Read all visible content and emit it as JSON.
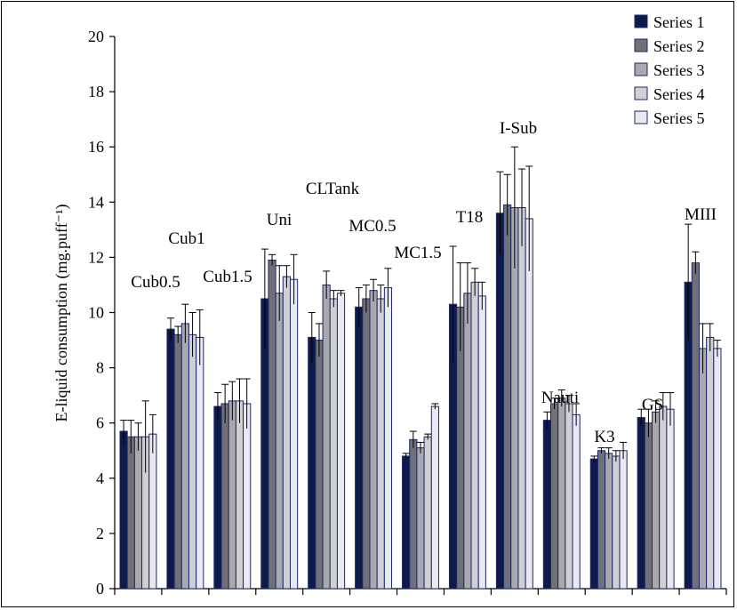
{
  "chart_data": {
    "type": "bar",
    "title": "",
    "ylabel": "E-liquid consumption (mg.puff⁻¹)",
    "xlabel": "",
    "ylim": [
      0,
      20
    ],
    "yticks": [
      0,
      2,
      4,
      6,
      8,
      10,
      12,
      14,
      16,
      18,
      20
    ],
    "grid": false,
    "legend_position": "top-right",
    "categories": [
      "Cub0.5",
      "Cub1",
      "Cub1.5",
      "Uni",
      "CLTank",
      "MC0.5",
      "MC1.5",
      "T18",
      "I-Sub",
      "Nauti",
      "K3",
      "GS",
      "MIII"
    ],
    "series": [
      {
        "name": "Series 1",
        "color": "#0d1a4a",
        "values": [
          5.7,
          9.4,
          6.6,
          10.5,
          9.1,
          10.2,
          4.8,
          10.3,
          13.6,
          6.1,
          4.7,
          6.2,
          11.1
        ],
        "errors": [
          0.4,
          0.4,
          0.5,
          1.8,
          0.9,
          0.7,
          0.1,
          2.1,
          1.5,
          0.3,
          0.1,
          0.3,
          2.1
        ]
      },
      {
        "name": "Series 2",
        "color": "#707078",
        "values": [
          5.5,
          9.2,
          6.7,
          11.9,
          9.0,
          10.5,
          5.4,
          10.2,
          13.9,
          6.7,
          5.0,
          6.0,
          11.8
        ],
        "errors": [
          0.6,
          0.3,
          0.7,
          0.2,
          0.6,
          0.5,
          0.3,
          1.6,
          1.1,
          0.2,
          0.1,
          0.5,
          0.4
        ]
      },
      {
        "name": "Series 3",
        "color": "#a8a8ae",
        "values": [
          5.5,
          9.6,
          6.8,
          10.7,
          11.0,
          10.8,
          5.1,
          10.7,
          13.8,
          6.9,
          4.9,
          6.4,
          8.7
        ],
        "errors": [
          0.5,
          0.7,
          0.7,
          1.0,
          0.5,
          0.4,
          0.2,
          1.1,
          2.2,
          0.3,
          0.2,
          0.4,
          0.9
        ]
      },
      {
        "name": "Series 4",
        "color": "#cfcfd4",
        "values": [
          5.5,
          9.2,
          6.8,
          11.3,
          10.5,
          10.5,
          5.5,
          11.1,
          13.8,
          6.7,
          4.8,
          6.6,
          9.1
        ],
        "errors": [
          1.3,
          0.8,
          0.8,
          0.4,
          0.3,
          0.5,
          0.1,
          0.5,
          1.4,
          0.3,
          0.2,
          0.5,
          0.5
        ]
      },
      {
        "name": "Series 5",
        "color": "#e8e9f3",
        "values": [
          5.6,
          9.1,
          6.7,
          11.2,
          10.7,
          10.9,
          6.6,
          10.6,
          13.4,
          6.3,
          5.0,
          6.5,
          8.7
        ],
        "errors": [
          0.7,
          1.0,
          0.9,
          0.9,
          0.1,
          0.7,
          0.1,
          0.5,
          1.9,
          0.4,
          0.3,
          0.6,
          0.3
        ]
      }
    ]
  }
}
